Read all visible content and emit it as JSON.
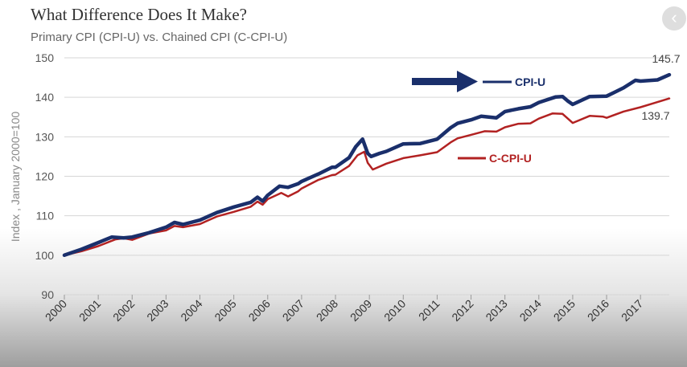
{
  "chart_data": {
    "type": "line",
    "title": "What Difference Does It Make?",
    "subtitle": "Primary CPI (CPI-U) vs. Chained CPI (C-CPI-U)",
    "xlabel": "",
    "ylabel": "Index , January 2000=100",
    "xlim": [
      2000,
      2017.85
    ],
    "ylim": [
      90,
      150
    ],
    "yticks": [
      90,
      100,
      110,
      120,
      130,
      140,
      150
    ],
    "xticks": [
      "2000",
      "2001",
      "2002",
      "2003",
      "2004",
      "2005",
      "2006",
      "2007",
      "2008",
      "2009",
      "2010",
      "2011",
      "2012",
      "2013",
      "2014",
      "2015",
      "2016",
      "2017"
    ],
    "grid": true,
    "series": [
      {
        "name": "CPI-U",
        "color": "#1a2f6b",
        "end_label": "145.7",
        "points": [
          [
            2000,
            100
          ],
          [
            2000.5,
            101.5
          ],
          [
            2001,
            103.2
          ],
          [
            2001.4,
            104.6
          ],
          [
            2001.75,
            104.4
          ],
          [
            2002,
            104.6
          ],
          [
            2002.5,
            105.7
          ],
          [
            2003,
            107.1
          ],
          [
            2003.25,
            108.3
          ],
          [
            2003.5,
            107.8
          ],
          [
            2004,
            108.9
          ],
          [
            2004.5,
            110.8
          ],
          [
            2005,
            112.2
          ],
          [
            2005.5,
            113.4
          ],
          [
            2005.7,
            114.7
          ],
          [
            2005.85,
            113.7
          ],
          [
            2006,
            115.2
          ],
          [
            2006.35,
            117.5
          ],
          [
            2006.6,
            117.2
          ],
          [
            2006.9,
            118.1
          ],
          [
            2007,
            118.7
          ],
          [
            2007.5,
            120.6
          ],
          [
            2007.9,
            122.3
          ],
          [
            2008,
            122.3
          ],
          [
            2008.4,
            124.7
          ],
          [
            2008.6,
            127.5
          ],
          [
            2008.8,
            129.4
          ],
          [
            2008.95,
            125.8
          ],
          [
            2009.05,
            125
          ],
          [
            2009.3,
            125.8
          ],
          [
            2009.5,
            126.3
          ],
          [
            2010,
            128.2
          ],
          [
            2010.5,
            128.3
          ],
          [
            2011,
            129.4
          ],
          [
            2011.4,
            132.3
          ],
          [
            2011.6,
            133.4
          ],
          [
            2012,
            134.3
          ],
          [
            2012.3,
            135.2
          ],
          [
            2012.75,
            134.8
          ],
          [
            2013,
            136.4
          ],
          [
            2013.4,
            137.1
          ],
          [
            2013.75,
            137.6
          ],
          [
            2014,
            138.7
          ],
          [
            2014.5,
            140.1
          ],
          [
            2014.7,
            140.2
          ],
          [
            2014.85,
            139.1
          ],
          [
            2015,
            138.2
          ],
          [
            2015.5,
            140.2
          ],
          [
            2016,
            140.3
          ],
          [
            2016.5,
            142.4
          ],
          [
            2016.85,
            144.3
          ],
          [
            2017,
            144.1
          ],
          [
            2017.5,
            144.4
          ],
          [
            2017.85,
            145.7
          ]
        ]
      },
      {
        "name": "C-CPI-U",
        "color": "#b22222",
        "end_label": "139.7",
        "points": [
          [
            2000,
            100
          ],
          [
            2000.5,
            101
          ],
          [
            2001,
            102.3
          ],
          [
            2001.5,
            104
          ],
          [
            2001.75,
            104.3
          ],
          [
            2002,
            103.9
          ],
          [
            2002.5,
            105.5
          ],
          [
            2003,
            106.3
          ],
          [
            2003.25,
            107.4
          ],
          [
            2003.5,
            107.1
          ],
          [
            2004,
            107.9
          ],
          [
            2004.5,
            109.8
          ],
          [
            2005,
            111
          ],
          [
            2005.5,
            112.3
          ],
          [
            2005.7,
            113.6
          ],
          [
            2005.85,
            112.8
          ],
          [
            2006,
            114.2
          ],
          [
            2006.4,
            115.8
          ],
          [
            2006.6,
            114.9
          ],
          [
            2006.9,
            116.2
          ],
          [
            2007,
            116.9
          ],
          [
            2007.5,
            119.1
          ],
          [
            2007.9,
            120.3
          ],
          [
            2008,
            120.4
          ],
          [
            2008.4,
            122.6
          ],
          [
            2008.65,
            125.3
          ],
          [
            2008.85,
            126.2
          ],
          [
            2008.95,
            123.4
          ],
          [
            2009.1,
            121.7
          ],
          [
            2009.5,
            123.2
          ],
          [
            2010,
            124.6
          ],
          [
            2010.5,
            125.3
          ],
          [
            2011,
            126.1
          ],
          [
            2011.4,
            128.6
          ],
          [
            2011.6,
            129.6
          ],
          [
            2012,
            130.5
          ],
          [
            2012.4,
            131.4
          ],
          [
            2012.75,
            131.3
          ],
          [
            2013,
            132.4
          ],
          [
            2013.4,
            133.3
          ],
          [
            2013.75,
            133.4
          ],
          [
            2014,
            134.6
          ],
          [
            2014.4,
            135.9
          ],
          [
            2014.7,
            135.8
          ],
          [
            2015,
            133.5
          ],
          [
            2015.5,
            135.3
          ],
          [
            2015.9,
            135.1
          ],
          [
            2016,
            134.8
          ],
          [
            2016.5,
            136.4
          ],
          [
            2017,
            137.5
          ],
          [
            2017.5,
            138.8
          ],
          [
            2017.85,
            139.7
          ]
        ]
      }
    ],
    "annotations": [
      "CPI-U",
      "C-CPI-U"
    ]
  }
}
